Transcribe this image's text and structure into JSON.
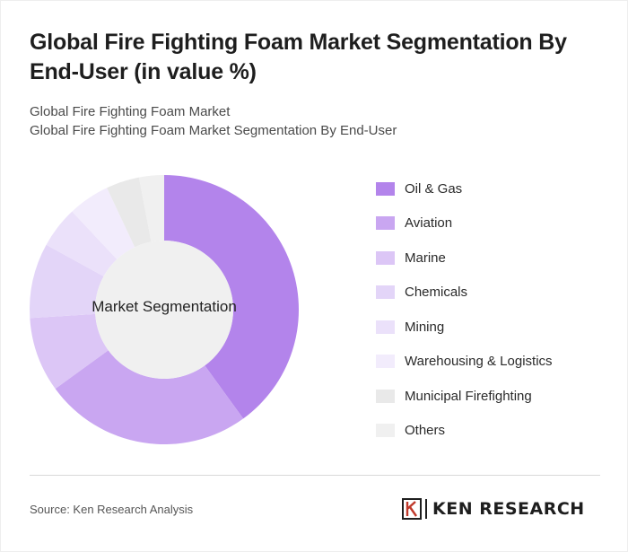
{
  "title": "Global Fire Fighting Foam Market Segmentation By End-User (in value %)",
  "breadcrumb": [
    "Global Fire Fighting Foam Market",
    "Global Fire Fighting Foam Market Segmentation By End-User"
  ],
  "chart_data": {
    "type": "pie",
    "variant": "donut",
    "center_label": "Market Segmentation",
    "legend_position": "right",
    "slices": [
      {
        "name": "Oil & Gas",
        "value": 40,
        "color": "#b384eb"
      },
      {
        "name": "Aviation",
        "value": 25,
        "color": "#c9a6f1"
      },
      {
        "name": "Marine",
        "value": 9,
        "color": "#dcc6f6"
      },
      {
        "name": "Chemicals",
        "value": 9,
        "color": "#e3d5f8"
      },
      {
        "name": "Mining",
        "value": 5,
        "color": "#ebe1fa"
      },
      {
        "name": "Warehousing & Logistics",
        "value": 5,
        "color": "#f2ecfc"
      },
      {
        "name": "Municipal Firefighting",
        "value": 4,
        "color": "#e9e9e9"
      },
      {
        "name": "Others",
        "value": 3,
        "color": "#f0f0f0"
      }
    ]
  },
  "footer": {
    "source": "Source: Ken Research Analysis",
    "brand": "KEN RESEARCH"
  }
}
